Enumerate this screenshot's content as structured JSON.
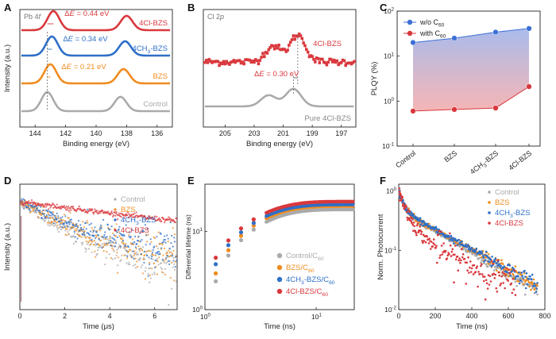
{
  "panels": [
    {
      "letter": "A",
      "type": "line",
      "inner_label": "Pb 4f",
      "xlabel": "Binding energy (eV)",
      "ylabel": "Intensity (a.u.)",
      "xlim": [
        145,
        135
      ],
      "xreversed": true,
      "xticks": [
        144,
        142,
        140,
        138,
        136
      ],
      "yticks_shown": false,
      "series": [
        {
          "name": "Control",
          "color": "#aaaaaa",
          "peaks": [
            143.2,
            138.4
          ],
          "delta": ""
        },
        {
          "name": "BZS",
          "color": "#f08c1e",
          "peaks": [
            143.0,
            138.2
          ],
          "delta": "ΔE = 0.21 eV"
        },
        {
          "name": "4CH3-BZS",
          "color": "#2e6fc7",
          "peaks": [
            142.9,
            138.1
          ],
          "delta": "ΔE = 0.34 eV"
        },
        {
          "name": "4Cl-BZS",
          "color": "#d9383d",
          "peaks": [
            142.8,
            138.0
          ],
          "delta": "ΔE = 0.44 eV"
        }
      ]
    },
    {
      "letter": "B",
      "type": "line",
      "inner_label": "Cl 2p",
      "xlabel": "Binding energy (eV)",
      "ylabel": "",
      "xlim": [
        206.5,
        196
      ],
      "xreversed": true,
      "xticks": [
        205,
        203,
        201,
        199,
        197
      ],
      "yticks_shown": false,
      "series": [
        {
          "name": "Pure 4Cl-BZS",
          "color": "#aaaaaa",
          "peaks": [
            202.0,
            200.3
          ]
        },
        {
          "name": "4Cl-BZS",
          "color": "#d9383d",
          "peaks": [
            201.7,
            200.0
          ]
        }
      ],
      "annotation": "ΔE = 0.30 eV"
    },
    {
      "letter": "C",
      "type": "line",
      "ylabel": "PLQY (%)",
      "yscale": "log",
      "ylim": [
        0.1,
        100
      ],
      "yticks": [
        "10-1",
        "100",
        "101",
        "102"
      ],
      "categories": [
        "Control",
        "BZS",
        "4CH3-BZS",
        "4Cl-BZS"
      ],
      "series": [
        {
          "name": "w/o C60",
          "color": "#3d6fd6",
          "values": [
            20,
            25,
            34,
            41
          ]
        },
        {
          "name": "with C60",
          "color": "#d9383d",
          "values": [
            0.6,
            0.65,
            0.7,
            2.1
          ]
        }
      ],
      "legend_position": "top-left"
    },
    {
      "letter": "D",
      "type": "scatter",
      "xlabel": "Time (μs)",
      "ylabel": "Intensity (a.u.)",
      "xlim": [
        0,
        7
      ],
      "xticks": [
        0,
        2,
        4,
        6
      ],
      "yscale": "log",
      "yticks_shown": false,
      "series": [
        {
          "name": "Control",
          "color": "#aaaaaa",
          "tau": 0.75
        },
        {
          "name": "BZS",
          "color": "#f08c1e",
          "tau": 0.95
        },
        {
          "name": "4CH3-BZS",
          "color": "#2e6fc7",
          "tau": 1.1
        },
        {
          "name": "4Cl-BZS",
          "color": "#d9383d",
          "tau": 4.0
        }
      ],
      "legend_position": "top-right"
    },
    {
      "letter": "E",
      "type": "scatter",
      "xlabel": "Time (ns)",
      "ylabel": "Differential lifetime (ns)",
      "xscale": "log",
      "yscale": "log",
      "xlim": [
        1,
        22
      ],
      "ylim": [
        1,
        40
      ],
      "xticks": [
        "100",
        "101"
      ],
      "yticks": [
        "100",
        "101"
      ],
      "series": [
        {
          "name": "Control/C60",
          "color": "#aaaaaa",
          "sat": 19
        },
        {
          "name": "BZS/C60",
          "color": "#f08c1e",
          "sat": 21
        },
        {
          "name": "4CH3-BZS/C60",
          "color": "#2e6fc7",
          "sat": 22
        },
        {
          "name": "4Cl-BZS/C60",
          "color": "#d9383d",
          "sat": 24
        }
      ],
      "legend_position": "bottom-right"
    },
    {
      "letter": "F",
      "type": "scatter",
      "xlabel": "Time (ns)",
      "ylabel": "Norm. Photocurrent",
      "xlim": [
        0,
        800
      ],
      "xticks": [
        0,
        200,
        400,
        600,
        800
      ],
      "yscale": "log",
      "ylim": [
        0.01,
        1.3
      ],
      "yticks": [
        "10-2",
        "10-1",
        "100"
      ],
      "series": [
        {
          "name": "Control",
          "color": "#aaaaaa",
          "tau": 240
        },
        {
          "name": "BZS",
          "color": "#f08c1e",
          "tau": 255
        },
        {
          "name": "4CH3-BZS",
          "color": "#2e6fc7",
          "tau": 260
        },
        {
          "name": "4Cl-BZS",
          "color": "#d9383d",
          "tau": 95
        }
      ],
      "legend_position": "top-right"
    }
  ]
}
